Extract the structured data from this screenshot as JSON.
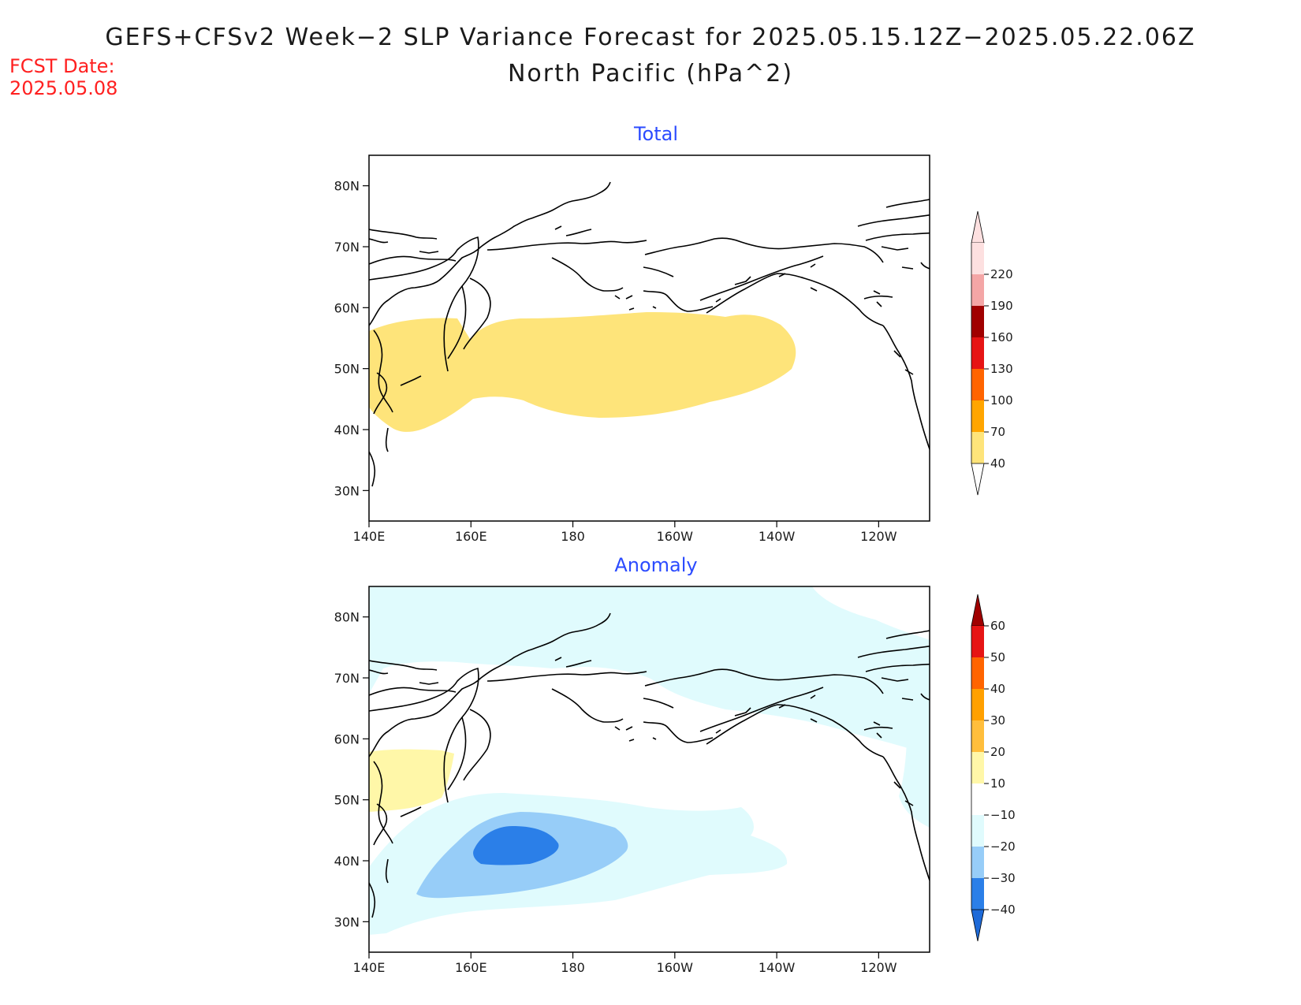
{
  "title": "GEFS+CFSv2 Week−2 SLP Variance Forecast for 2025.05.15.12Z−2025.05.22.06Z",
  "subtitle": "North Pacific (hPa^2)",
  "fcst": {
    "label": "FCST Date:",
    "value": "2025.05.08"
  },
  "colors": {
    "title_text": "#1a1a1a",
    "fcst_text": "#ff2020",
    "panel_title": "#2b4bff",
    "coastline": "#000000"
  },
  "axes": {
    "lat_ticks": [
      "80N",
      "70N",
      "60N",
      "50N",
      "40N",
      "30N"
    ],
    "lon_ticks": [
      "140E",
      "160E",
      "180",
      "160W",
      "140W",
      "120W"
    ],
    "lat_range": [
      25,
      85
    ],
    "lon_range": [
      140,
      250
    ]
  },
  "panels": [
    {
      "title": "Total",
      "colorbar": {
        "labels": [
          "40",
          "70",
          "100",
          "130",
          "160",
          "190",
          "220"
        ],
        "colors": [
          "#fee47a",
          "#ffa500",
          "#ff6400",
          "#e61414",
          "#a00000",
          "#f4a6a6",
          "#fde0e0"
        ],
        "extend_low_color": "#ffffff",
        "extend_high_color": "#fde0e0"
      }
    },
    {
      "title": "Anomaly",
      "colorbar": {
        "labels": [
          "−40",
          "−30",
          "−20",
          "−10",
          "10",
          "20",
          "30",
          "40",
          "50",
          "60"
        ],
        "colors": [
          "#2b7fe8",
          "#97cdf8",
          "#e0fbfd",
          "#ffffff",
          "#fff7a8",
          "#ffbe3c",
          "#ffa000",
          "#ff6400",
          "#e61414"
        ],
        "extend_low_color": "#1e6ad8",
        "extend_high_color": "#a00000"
      }
    }
  ],
  "chart_data": [
    {
      "type": "heatmap",
      "title": "Total",
      "units": "hPa^2",
      "levels": [
        40,
        70,
        100,
        130,
        160,
        190,
        220
      ],
      "regions": [
        {
          "level": "40-70",
          "description": "Band across North Pacific from 140E to ~135W, centered near 45-55N"
        }
      ]
    },
    {
      "type": "heatmap",
      "title": "Anomaly",
      "units": "hPa^2",
      "levels": [
        -40,
        -30,
        -20,
        -10,
        10,
        20,
        30,
        40,
        50,
        60
      ],
      "regions": [
        {
          "level": "10-20",
          "description": "Sea of Okhotsk region ~50-58N, 140-155E"
        },
        {
          "level": "-20 to -10",
          "description": "Arctic / Beaufort band and broad central Pacific 30-50N"
        },
        {
          "level": "-30 to -20",
          "description": "Central North Pacific ~35-47N, 150E-170W"
        },
        {
          "level": "-40 to -30",
          "description": "Core near 40-45N, 160-175E"
        }
      ]
    }
  ]
}
